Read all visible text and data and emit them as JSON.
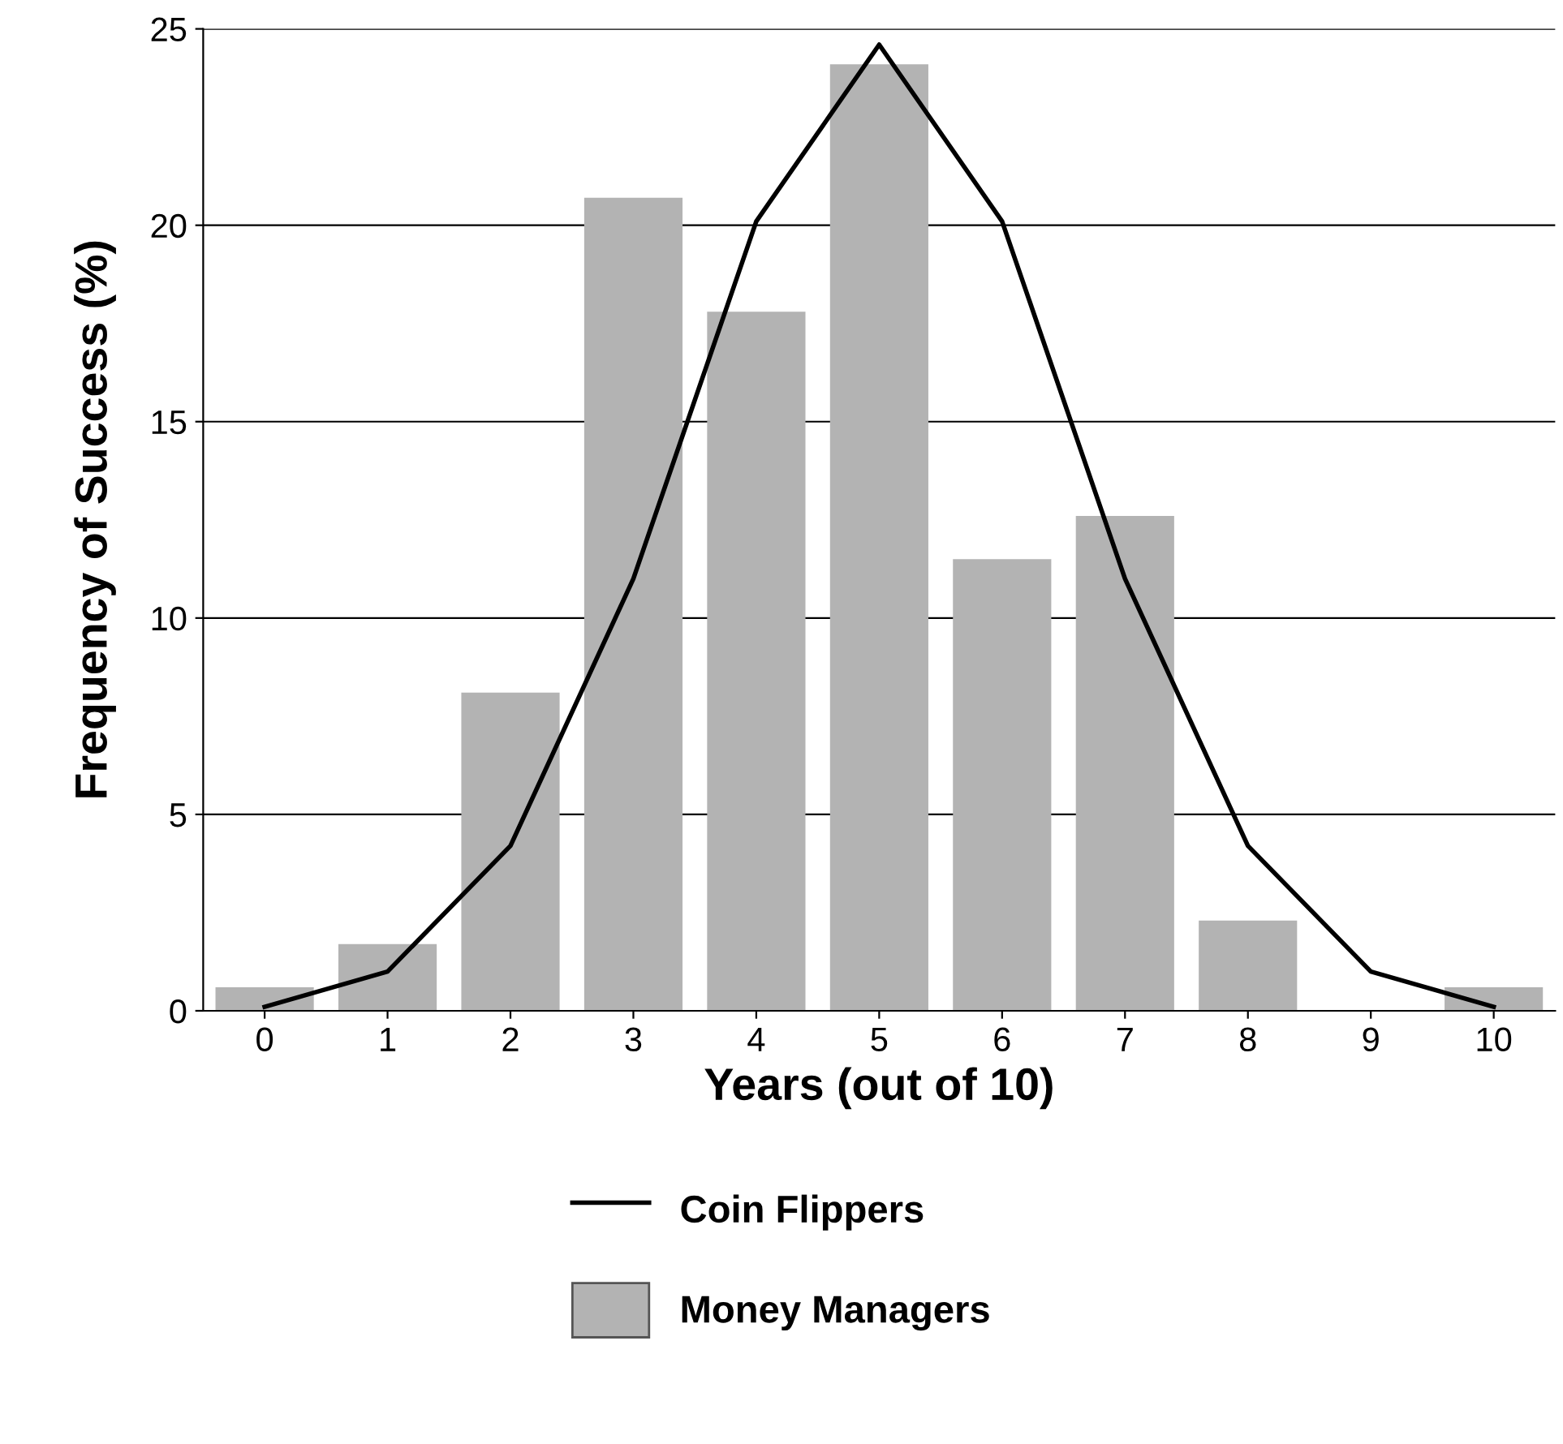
{
  "chart_data": {
    "type": "bar",
    "xlabel": "Years (out of 10)",
    "ylabel": "Frequency of Success (%)",
    "categories": [
      "0",
      "1",
      "2",
      "3",
      "4",
      "5",
      "6",
      "7",
      "8",
      "9",
      "10"
    ],
    "series": [
      {
        "name": "Coin Flippers",
        "type": "line",
        "color": "#000000",
        "values": [
          0.1,
          1.0,
          4.2,
          11.0,
          20.1,
          24.6,
          20.1,
          11.0,
          4.2,
          1.0,
          0.1
        ]
      },
      {
        "name": "Money Managers",
        "color": "#b3b3b3",
        "values": [
          0.6,
          1.7,
          8.1,
          20.7,
          17.8,
          24.1,
          11.5,
          12.6,
          2.3,
          0,
          0.6
        ]
      }
    ],
    "ylim": [
      0,
      25
    ],
    "yticks": [
      0,
      5,
      10,
      15,
      20,
      25
    ],
    "grid": "y",
    "legend": "bottom",
    "marker": "none",
    "line_style": "solid"
  }
}
